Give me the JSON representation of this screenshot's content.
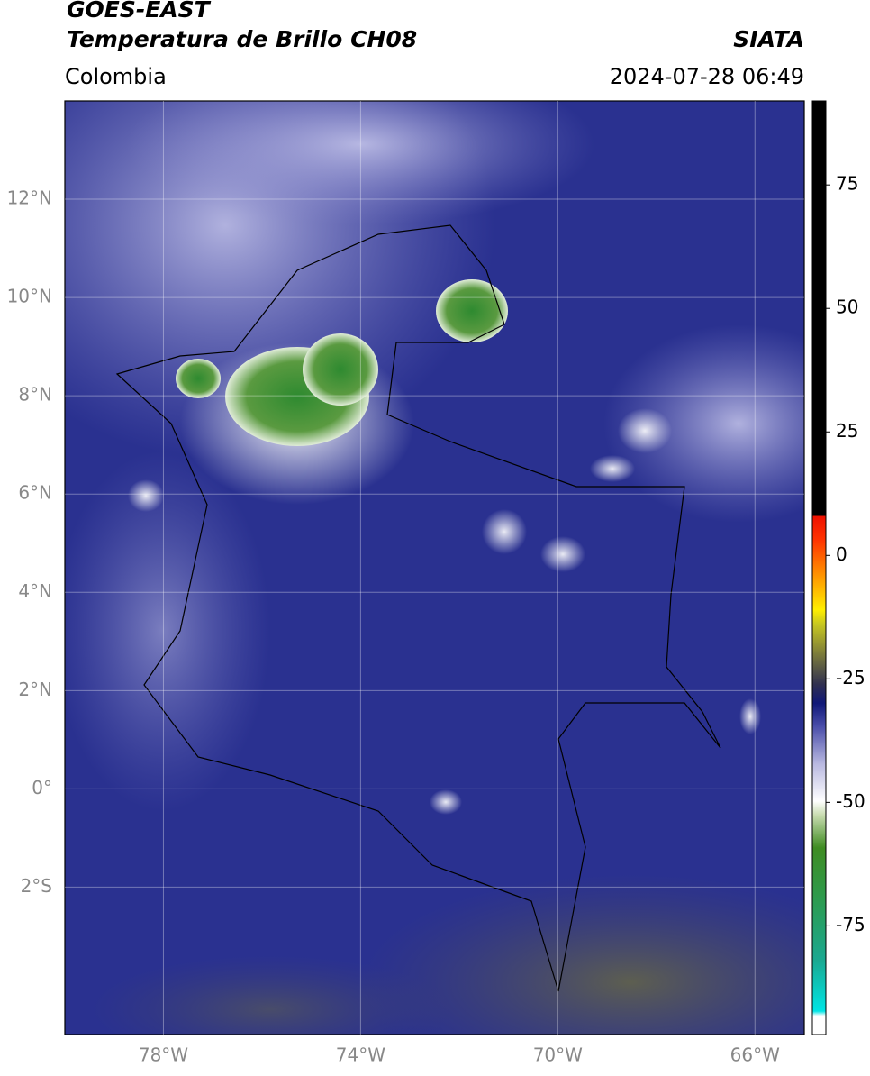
{
  "chart_data": {
    "type": "map",
    "title": "GOES-EAST",
    "subtitle": "Temperatura de Brillo CH08",
    "source": "SIATA",
    "region": "Colombia",
    "timestamp": "2024-07-28 06:49",
    "xlim": [
      -80,
      -65
    ],
    "ylim": [
      -5,
      14
    ],
    "xticks": [
      {
        "value": -78,
        "label": "78°W"
      },
      {
        "value": -74,
        "label": "74°W"
      },
      {
        "value": -70,
        "label": "70°W"
      },
      {
        "value": -66,
        "label": "66°W"
      }
    ],
    "yticks": [
      {
        "value": -2,
        "label": "2°S"
      },
      {
        "value": 0,
        "label": "0°"
      },
      {
        "value": 2,
        "label": "2°N"
      },
      {
        "value": 4,
        "label": "4°N"
      },
      {
        "value": 6,
        "label": "6°N"
      },
      {
        "value": 8,
        "label": "8°N"
      },
      {
        "value": 10,
        "label": "10°N"
      },
      {
        "value": 12,
        "label": "12°N"
      }
    ],
    "grid": true,
    "colorbar": {
      "clim": [
        -97,
        92
      ],
      "ticks": [
        -75,
        -50,
        -25,
        0,
        25,
        50,
        75
      ]
    }
  }
}
